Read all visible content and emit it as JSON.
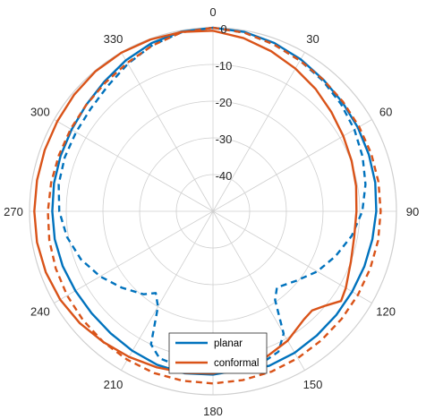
{
  "chart_data": {
    "type": "polar-line",
    "theta_unit": "deg",
    "theta_zero": "top",
    "theta_direction": "clockwise",
    "theta_ticks": [
      0,
      30,
      60,
      90,
      120,
      150,
      180,
      210,
      240,
      270,
      300,
      330
    ],
    "theta_tick_labels": [
      "0",
      "30",
      "60",
      "90",
      "120",
      "150",
      "180",
      "210",
      "240",
      "270",
      "300",
      "330"
    ],
    "r_range": [
      -50,
      0
    ],
    "r_ticks": [
      -40,
      -30,
      -20,
      -10,
      0
    ],
    "r_tick_labels": [
      "-40",
      "-30",
      "-20",
      "-10",
      "0"
    ],
    "r_tick_label_angle_deg": 0,
    "grid": true,
    "legend": {
      "location": "bottom-center",
      "entries": [
        "planar",
        "conformal"
      ]
    },
    "colors": {
      "planar": "#0072BD",
      "conformal": "#D95319",
      "grid": "#cfcfcf",
      "axis_text": "#262626"
    },
    "series": [
      {
        "name": "planar",
        "line_style": "solid",
        "color": "#0072BD",
        "theta": [
          0,
          10,
          20,
          30,
          40,
          50,
          60,
          70,
          80,
          90,
          100,
          110,
          120,
          130,
          140,
          150,
          160,
          165,
          170,
          175,
          180,
          190,
          200,
          210,
          220,
          230,
          240,
          250,
          260,
          270,
          280,
          290,
          300,
          310,
          320,
          330,
          340,
          350,
          360
        ],
        "r": [
          0,
          -0.4,
          -1.2,
          -2.2,
          -3.2,
          -3.9,
          -4.4,
          -4.8,
          -5.1,
          -5.5,
          -5.9,
          -6.1,
          -6.2,
          -6.1,
          -5.9,
          -5.5,
          -5.2,
          -5.6,
          -6.7,
          -6.0,
          -5.5,
          -5.2,
          -5.5,
          -6.1,
          -6.6,
          -6.8,
          -6.7,
          -6.4,
          -6.2,
          -6.2,
          -6.0,
          -5.8,
          -5.5,
          -4.9,
          -3.9,
          -2.5,
          -1.2,
          -0.3,
          0
        ]
      },
      {
        "name": "",
        "line_style": "dashed",
        "color": "#0072BD",
        "theta": [
          0,
          10,
          20,
          30,
          40,
          50,
          60,
          70,
          80,
          90,
          100,
          110,
          120,
          130,
          140,
          145,
          150,
          155,
          160,
          170,
          180,
          190,
          200,
          205,
          210,
          215,
          220,
          230,
          240,
          250,
          260,
          270,
          280,
          290,
          300,
          310,
          320,
          330,
          340,
          350,
          360
        ],
        "r": [
          0,
          -0.6,
          -1.6,
          -2.6,
          -3.5,
          -4.5,
          -5.5,
          -6.6,
          -7.8,
          -9.3,
          -11.6,
          -14.4,
          -17.2,
          -20.5,
          -22.9,
          -20.5,
          -11.5,
          -7.8,
          -7.0,
          -6.6,
          -6.0,
          -6.5,
          -7.4,
          -10.0,
          -20.0,
          -22.8,
          -20.5,
          -17.6,
          -14.5,
          -11.7,
          -9.6,
          -8.1,
          -7.3,
          -7.0,
          -6.9,
          -6.5,
          -5.4,
          -3.6,
          -1.8,
          -0.5,
          0
        ]
      },
      {
        "name": "conformal",
        "line_style": "solid",
        "color": "#D95319",
        "theta": [
          0,
          10,
          20,
          30,
          40,
          50,
          60,
          70,
          80,
          90,
          100,
          110,
          120,
          125,
          130,
          135,
          140,
          150,
          160,
          170,
          180,
          190,
          200,
          210,
          220,
          230,
          240,
          250,
          260,
          270,
          280,
          290,
          300,
          310,
          320,
          330,
          340,
          350,
          360
        ],
        "r": [
          -0.8,
          -2.1,
          -3.6,
          -5.1,
          -6.5,
          -7.9,
          -9.0,
          -9.8,
          -10.4,
          -10.9,
          -10.9,
          -10.0,
          -8.2,
          -7.4,
          -10.0,
          -11.8,
          -11.5,
          -9.3,
          -7.7,
          -6.7,
          -5.8,
          -5.3,
          -4.8,
          -4.2,
          -3.5,
          -2.6,
          -1.9,
          -1.5,
          -1.3,
          -1.3,
          -1.3,
          -1.2,
          -1.0,
          -0.6,
          -0.2,
          -0.1,
          -0.2,
          -0.4,
          -0.8
        ]
      },
      {
        "name": "",
        "line_style": "dashed",
        "color": "#D95319",
        "theta": [
          0,
          10,
          20,
          30,
          40,
          50,
          60,
          70,
          80,
          90,
          100,
          110,
          120,
          130,
          140,
          150,
          160,
          170,
          180,
          190,
          200,
          210,
          220,
          230,
          240,
          250,
          260,
          270,
          280,
          290,
          300,
          310,
          320,
          330,
          340,
          350,
          360
        ],
        "r": [
          0,
          -0.6,
          -1.6,
          -2.6,
          -3.2,
          -3.7,
          -4.0,
          -4.1,
          -4.2,
          -4.3,
          -4.3,
          -4.4,
          -4.4,
          -4.3,
          -4.1,
          -3.8,
          -3.5,
          -3.3,
          -3.1,
          -3.1,
          -3.1,
          -3.3,
          -3.5,
          -3.8,
          -4.1,
          -4.4,
          -4.7,
          -5.0,
          -5.2,
          -5.3,
          -5.2,
          -4.9,
          -4.3,
          -3.3,
          -1.9,
          -0.5,
          0
        ]
      }
    ]
  }
}
